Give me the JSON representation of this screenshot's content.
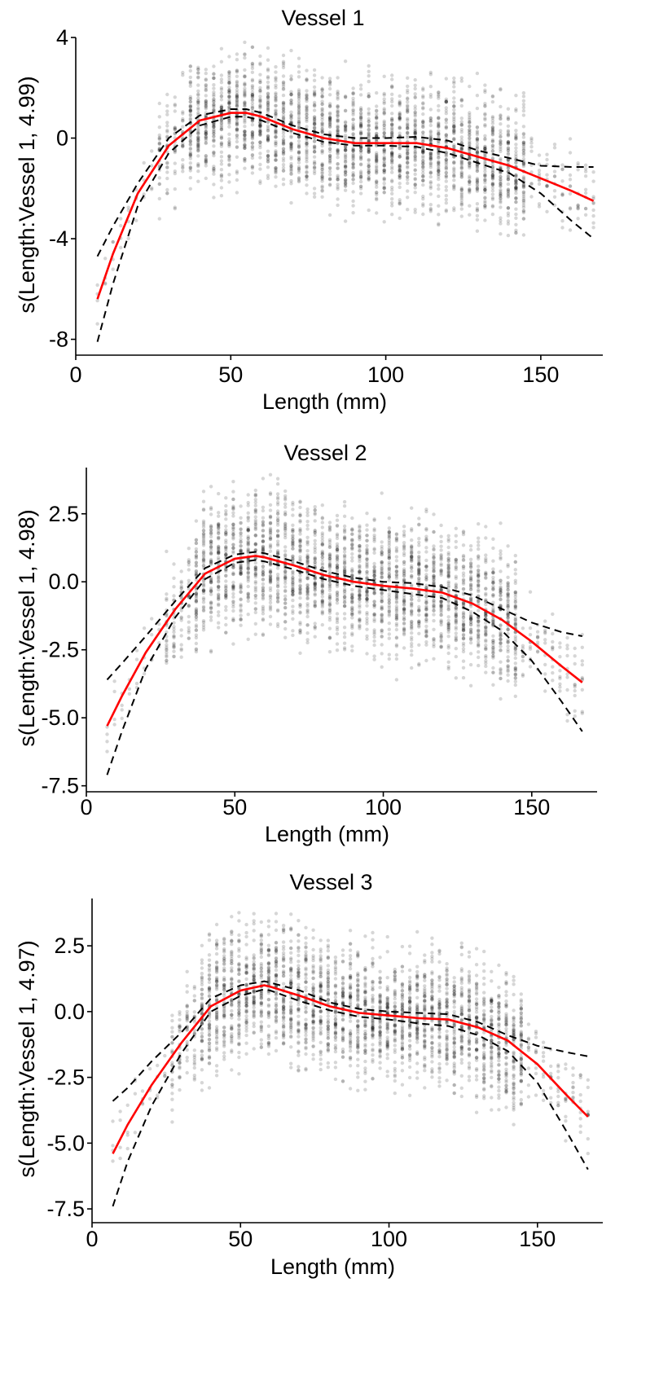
{
  "chart_data": [
    {
      "type": "scatter",
      "title": "Vessel 1",
      "xlabel": "Length (mm)",
      "ylabel": "s(Length:Vessel 1, 4.99)",
      "xlim": [
        0,
        170
      ],
      "ylim": [
        -8.5,
        4
      ],
      "x_ticks": [
        0,
        50,
        100,
        150
      ],
      "y_ticks": [
        4,
        0,
        -4,
        -8
      ],
      "grid": false,
      "series": [
        {
          "role": "fit",
          "color": "#ff0000",
          "x": [
            7,
            12,
            20,
            30,
            40,
            50,
            55,
            60,
            70,
            80,
            90,
            100,
            110,
            120,
            130,
            140,
            150,
            160,
            167
          ],
          "y": [
            -6.4,
            -4.6,
            -2.2,
            -0.3,
            0.7,
            1.0,
            1.0,
            0.85,
            0.35,
            0.0,
            -0.2,
            -0.2,
            -0.2,
            -0.4,
            -0.75,
            -1.1,
            -1.6,
            -2.1,
            -2.5
          ]
        },
        {
          "role": "upper-ci",
          "color": "#000000",
          "x": [
            7,
            12,
            20,
            30,
            40,
            50,
            55,
            60,
            70,
            80,
            90,
            100,
            110,
            120,
            130,
            140,
            150,
            160,
            167
          ],
          "y": [
            -4.7,
            -3.5,
            -1.8,
            0.0,
            0.9,
            1.15,
            1.15,
            1.0,
            0.5,
            0.15,
            0.0,
            0.0,
            0.05,
            -0.1,
            -0.5,
            -0.8,
            -1.1,
            -1.15,
            -1.15
          ]
        },
        {
          "role": "lower-ci",
          "color": "#000000",
          "x": [
            7,
            12,
            20,
            30,
            40,
            50,
            55,
            60,
            70,
            80,
            90,
            100,
            110,
            120,
            130,
            140,
            150,
            160,
            167
          ],
          "y": [
            -8.1,
            -5.8,
            -2.7,
            -0.6,
            0.5,
            0.85,
            0.85,
            0.7,
            0.2,
            -0.15,
            -0.3,
            -0.3,
            -0.35,
            -0.6,
            -1.0,
            -1.4,
            -2.2,
            -3.3,
            -4.0
          ]
        }
      ]
    },
    {
      "type": "scatter",
      "title": "Vessel 2",
      "xlabel": "Length (mm)",
      "ylabel": "s(Length:Vessel 1, 4.98)",
      "xlim": [
        0,
        172
      ],
      "ylim": [
        -7.6,
        4.2
      ],
      "x_ticks": [
        0,
        50,
        100,
        150
      ],
      "y_ticks": [
        2.5,
        0.0,
        -2.5,
        -5.0,
        -7.5
      ],
      "y_tick_labels": [
        "2.5",
        "0.0",
        "-2.5",
        "-5.0",
        "-7.5"
      ],
      "grid": false,
      "series": [
        {
          "role": "fit",
          "color": "#ff0000",
          "x": [
            7,
            12,
            20,
            30,
            40,
            50,
            57,
            60,
            70,
            80,
            90,
            100,
            110,
            120,
            130,
            140,
            150,
            160,
            167
          ],
          "y": [
            -5.3,
            -4.2,
            -2.6,
            -1.0,
            0.3,
            0.85,
            0.95,
            0.9,
            0.6,
            0.25,
            0.0,
            -0.15,
            -0.25,
            -0.4,
            -0.8,
            -1.4,
            -2.2,
            -3.1,
            -3.7
          ]
        },
        {
          "role": "upper-ci",
          "color": "#000000",
          "x": [
            7,
            12,
            20,
            30,
            40,
            50,
            57,
            60,
            70,
            80,
            90,
            100,
            110,
            120,
            130,
            140,
            150,
            160,
            167
          ],
          "y": [
            -3.6,
            -3.0,
            -2.0,
            -0.7,
            0.5,
            1.0,
            1.1,
            1.05,
            0.75,
            0.4,
            0.15,
            0.0,
            -0.05,
            -0.2,
            -0.5,
            -1.0,
            -1.5,
            -1.85,
            -2.0
          ]
        },
        {
          "role": "lower-ci",
          "color": "#000000",
          "x": [
            7,
            12,
            20,
            30,
            40,
            50,
            57,
            60,
            70,
            80,
            90,
            100,
            110,
            120,
            130,
            140,
            150,
            160,
            167
          ],
          "y": [
            -7.1,
            -5.5,
            -3.2,
            -1.3,
            0.1,
            0.7,
            0.8,
            0.75,
            0.45,
            0.1,
            -0.15,
            -0.3,
            -0.45,
            -0.6,
            -1.1,
            -1.8,
            -2.9,
            -4.4,
            -5.5
          ]
        }
      ]
    },
    {
      "type": "scatter",
      "title": "Vessel 3",
      "xlabel": "Length (mm)",
      "ylabel": "s(Length:Vessel 1, 4.97)",
      "xlim": [
        0,
        172
      ],
      "ylim": [
        -7.9,
        4.3
      ],
      "x_ticks": [
        0,
        50,
        100,
        150
      ],
      "y_ticks": [
        2.5,
        0.0,
        -2.5,
        -5.0,
        -7.5
      ],
      "y_tick_labels": [
        "2.5",
        "0.0",
        "-2.5",
        "-5.0",
        "-7.5"
      ],
      "grid": false,
      "series": [
        {
          "role": "fit",
          "color": "#ff0000",
          "x": [
            7,
            12,
            20,
            30,
            40,
            50,
            58,
            60,
            70,
            80,
            90,
            100,
            110,
            120,
            130,
            140,
            150,
            160,
            167
          ],
          "y": [
            -5.4,
            -4.3,
            -2.8,
            -1.2,
            0.2,
            0.8,
            1.0,
            0.95,
            0.6,
            0.2,
            -0.05,
            -0.15,
            -0.25,
            -0.3,
            -0.6,
            -1.1,
            -2.0,
            -3.2,
            -4.0
          ]
        },
        {
          "role": "upper-ci",
          "color": "#000000",
          "x": [
            7,
            12,
            20,
            30,
            40,
            50,
            58,
            60,
            70,
            80,
            90,
            100,
            110,
            120,
            130,
            140,
            150,
            160,
            167
          ],
          "y": [
            -3.4,
            -2.9,
            -1.9,
            -0.8,
            0.5,
            1.0,
            1.15,
            1.1,
            0.8,
            0.35,
            0.1,
            0.0,
            -0.05,
            -0.1,
            -0.4,
            -0.9,
            -1.3,
            -1.55,
            -1.7
          ]
        },
        {
          "role": "lower-ci",
          "color": "#000000",
          "x": [
            7,
            12,
            20,
            30,
            40,
            50,
            58,
            60,
            70,
            80,
            90,
            100,
            110,
            120,
            130,
            140,
            150,
            160,
            167
          ],
          "y": [
            -7.4,
            -5.7,
            -3.6,
            -1.6,
            0.0,
            0.6,
            0.85,
            0.8,
            0.4,
            0.05,
            -0.2,
            -0.3,
            -0.45,
            -0.55,
            -0.9,
            -1.5,
            -2.7,
            -4.6,
            -6.0
          ]
        }
      ]
    }
  ]
}
